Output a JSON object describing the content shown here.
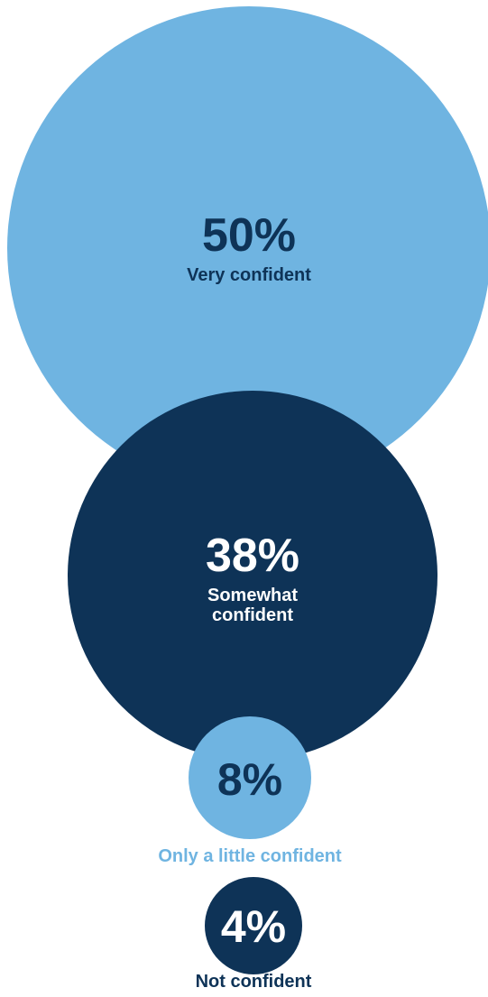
{
  "chart_data": {
    "type": "bubble",
    "colors": {
      "light": "#6fb4e1",
      "dark": "#0e3357",
      "white": "#ffffff"
    },
    "items": [
      {
        "label_lines": [
          "Very confident"
        ],
        "value": 50,
        "value_label": "50%",
        "fill": "#6fb4e1",
        "text_color": "#0e3357",
        "label_outside": false
      },
      {
        "label_lines": [
          "Somewhat",
          "confident"
        ],
        "value": 38,
        "value_label": "38%",
        "fill": "#0e3357",
        "text_color": "#ffffff",
        "label_outside": false
      },
      {
        "label_lines": [
          "Only a little confident"
        ],
        "value": 8,
        "value_label": "8%",
        "fill": "#6fb4e1",
        "text_color": "#0e3357",
        "label_outside": true,
        "label_color": "#6fb4e1"
      },
      {
        "label_lines": [
          "Not confident"
        ],
        "value": 4,
        "value_label": "4%",
        "fill": "#0e3357",
        "text_color": "#ffffff",
        "label_outside": true,
        "label_color": "#0e3357"
      }
    ]
  }
}
